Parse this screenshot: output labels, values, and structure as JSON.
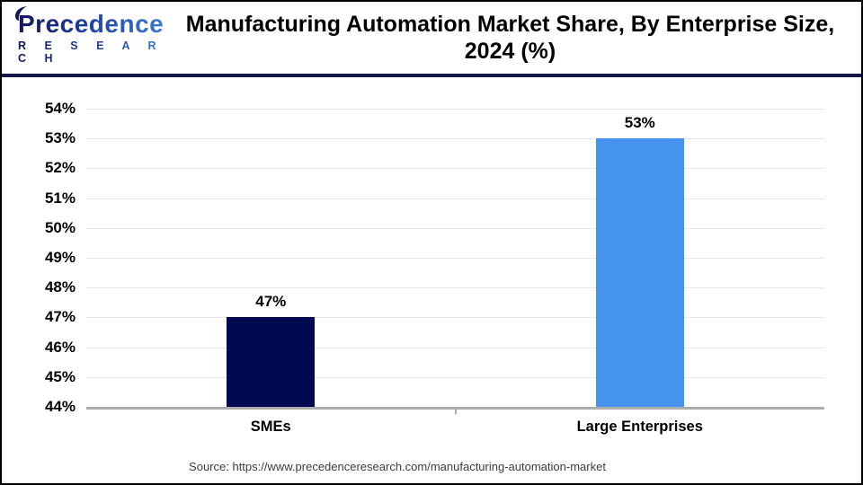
{
  "header": {
    "logo": {
      "name": "Precedence",
      "subname": "R E S E A R C H"
    },
    "title_line1": "Manufacturing Automation Market Share, By Enterprise Size,",
    "title_line2": "2024 (%)"
  },
  "chart_data": {
    "type": "bar",
    "title": "Manufacturing Automation Market Share, By Enterprise Size, 2024 (%)",
    "categories": [
      "SMEs",
      "Large Enterprises"
    ],
    "values": [
      47,
      53
    ],
    "value_labels": [
      "47%",
      "53%"
    ],
    "bar_colors": [
      "#010A50",
      "#4593EC"
    ],
    "ylim": [
      44,
      54
    ],
    "ytick_step": 1,
    "ytick_suffix": "%",
    "grid": true,
    "legend": "none",
    "xlabel": "",
    "ylabel": ""
  },
  "footer": {
    "source": "Source: https://www.precedenceresearch.com/manufacturing-automation-market"
  },
  "colors": {
    "divider": "#141747",
    "gridline": "#E7E7E7",
    "axis_line": "#ADADAD",
    "logo_dark": "#13165C",
    "logo_blue": "#3D7DD6",
    "bar_navy": "#010A50",
    "bar_blue": "#4593EC"
  }
}
